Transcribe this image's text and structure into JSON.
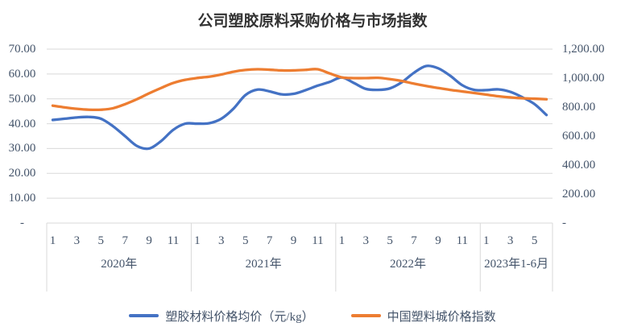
{
  "chart_data": {
    "type": "line",
    "title": "公司塑胶原料采购价格与市场指数",
    "grid": true,
    "smooth": true,
    "legend_position": "bottom",
    "colors": {
      "grid": "#D9D9D9",
      "axis_text": "#44546A",
      "title_text": "#333333"
    },
    "left_axis": {
      "min": 0,
      "max": 70,
      "step": 10,
      "labels": [
        "-",
        "10.00",
        "20.00",
        "30.00",
        "40.00",
        "50.00",
        "60.00",
        "70.00"
      ]
    },
    "right_axis": {
      "min": 0,
      "max": 1200,
      "step": 200,
      "labels": [
        "-",
        "200.00",
        "400.00",
        "600.00",
        "800.00",
        "1,000.00",
        "1,200.00"
      ]
    },
    "x_groups": [
      {
        "label": "2020年",
        "months": 12,
        "tick_labels": [
          "1",
          "3",
          "5",
          "7",
          "9",
          "11"
        ]
      },
      {
        "label": "2021年",
        "months": 12,
        "tick_labels": [
          "1",
          "3",
          "5",
          "7",
          "9",
          "11"
        ]
      },
      {
        "label": "2022年",
        "months": 12,
        "tick_labels": [
          "1",
          "3",
          "5",
          "7",
          "9",
          "11"
        ]
      },
      {
        "label": "2023年1-6月",
        "months": 6,
        "tick_labels": [
          "1",
          "3",
          "5"
        ]
      }
    ],
    "series": [
      {
        "id": "avg-price",
        "name": "塑胶材料价格均价（元/kg）",
        "axis": "left",
        "color": "#4472C4",
        "values": [
          41.5,
          42.0,
          42.5,
          42.7,
          42.0,
          39.0,
          35.0,
          31.0,
          30.0,
          33.0,
          37.5,
          40.0,
          40.0,
          40.2,
          42.0,
          46.0,
          51.5,
          53.7,
          53.0,
          51.8,
          52.0,
          53.5,
          55.3,
          56.8,
          58.6,
          56.4,
          54.0,
          53.6,
          54.2,
          56.7,
          60.5,
          63.2,
          62.3,
          59.3,
          55.5,
          53.6,
          53.5,
          53.8,
          52.8,
          50.6,
          47.9,
          43.5
        ]
      },
      {
        "id": "price-index",
        "name": "中国塑料城价格指数",
        "axis": "right",
        "color": "#ED7D31",
        "values": [
          810,
          798,
          788,
          782,
          782,
          792,
          820,
          855,
          895,
          932,
          966,
          988,
          1001,
          1010,
          1025,
          1044,
          1056,
          1061,
          1058,
          1053,
          1053,
          1057,
          1061,
          1032,
          1005,
          1000,
          1000,
          1002,
          993,
          980,
          962,
          946,
          932,
          919,
          908,
          897,
          886,
          875,
          867,
          861,
          858,
          854
        ]
      }
    ]
  }
}
